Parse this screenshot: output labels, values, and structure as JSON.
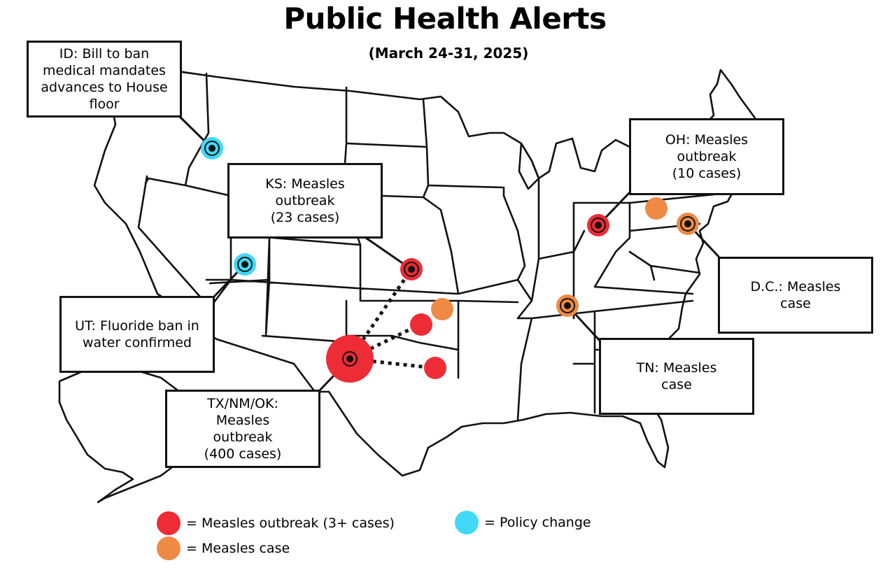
{
  "header": {
    "title": "Public Health Alerts",
    "subtitle": "(March 24-31, 2025)"
  },
  "colors": {
    "outbreak": "#ee2c35",
    "case": "#ee8a45",
    "policy": "#42d9f7",
    "outline": "#111111"
  },
  "callouts": {
    "id": {
      "lines": [
        "ID: Bill to ban",
        "medical mandates",
        "advances to House",
        "floor"
      ]
    },
    "ks": {
      "lines": [
        "KS: Measles",
        "outbreak",
        "(23 cases)"
      ]
    },
    "ut": {
      "lines": [
        "UT: Fluoride ban in",
        "water confirmed"
      ]
    },
    "tx": {
      "lines": [
        "TX/NM/OK:",
        "Measles",
        "outbreak",
        "(400 cases)"
      ]
    },
    "oh": {
      "lines": [
        "OH: Measles",
        "outbreak",
        "(10 cases)"
      ]
    },
    "dc": {
      "lines": [
        "D.C.: Measles",
        "case"
      ]
    },
    "tn": {
      "lines": [
        "TN: Measles",
        "case"
      ]
    }
  },
  "legend": {
    "outbreak": {
      "label": "= Measles outbreak (3+ cases)",
      "icon": "red-dot-icon"
    },
    "case": {
      "label": "= Measles case",
      "icon": "orange-dot-icon"
    },
    "policy": {
      "label": "= Policy change",
      "icon": "cyan-dot-icon"
    }
  }
}
